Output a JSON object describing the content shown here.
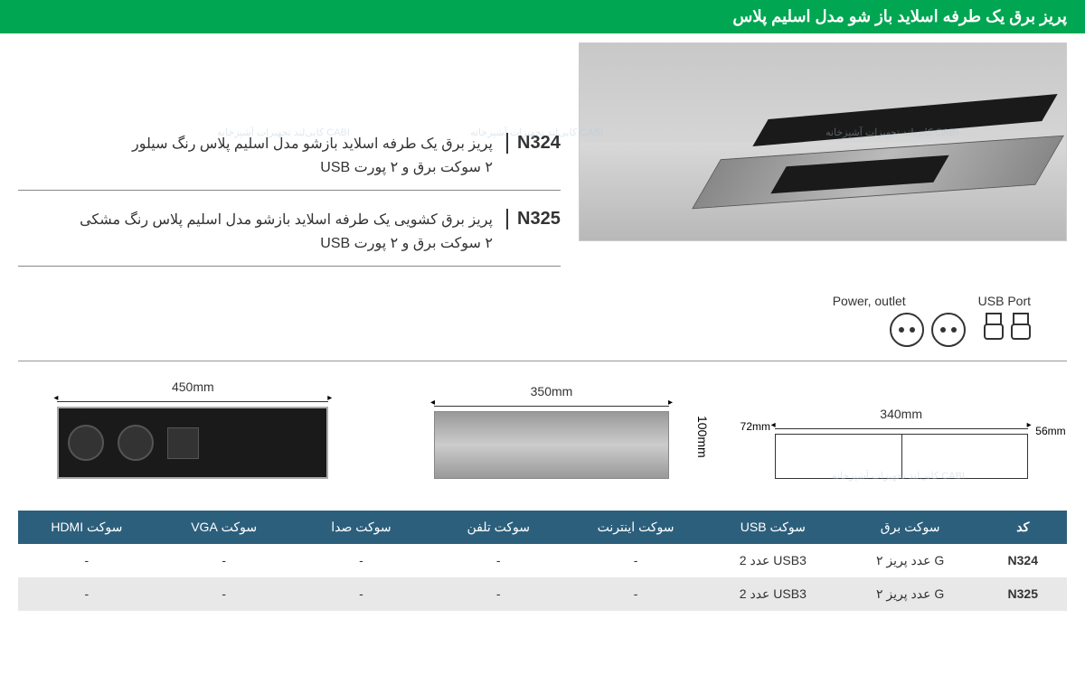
{
  "header": {
    "title": "پریز برق یک طرفه اسلاید باز شو  مدل اسلیم پلاس"
  },
  "codes": [
    {
      "code": "N324",
      "line1": "پریز برق یک طرفه اسلاید بازشو مدل اسلیم پلاس رنگ سیلور",
      "line2": "۲ سوکت برق و ۲ پورت USB"
    },
    {
      "code": "N325",
      "line1": "پریز برق کشویی یک طرفه اسلاید بازشو مدل اسلیم پلاس رنگ مشکی",
      "line2": "۲ سوکت برق و ۲ پورت USB"
    }
  ],
  "portLabels": {
    "power": "Power, outlet",
    "usb": "USB Port"
  },
  "dimensions": {
    "front_width": "450mm",
    "closed_width": "350mm",
    "closed_height": "100mm",
    "tech_width": "340mm",
    "tech_depth": "72mm",
    "tech_height": "56mm"
  },
  "table": {
    "headers": [
      "کد",
      "سوکت برق",
      "سوکت USB",
      "سوکت اینترنت",
      "سوکت تلفن",
      "سوکت صدا",
      "سوکت VGA",
      "سوکت HDMI"
    ],
    "rows": [
      [
        "N324",
        "۲ عدد پریز G",
        "2 عدد USB3",
        "-",
        "-",
        "-",
        "-",
        "-"
      ],
      [
        "N325",
        "۲ عدد پریز G",
        "2 عدد USB3",
        "-",
        "-",
        "-",
        "-",
        "-"
      ]
    ]
  },
  "colors": {
    "header_bg": "#00a651",
    "table_header_bg": "#2c5f7c",
    "row_alt_bg": "#e8e8e8"
  },
  "watermark": "CABI کابی‌لند تجهیزات آشپزخانه"
}
